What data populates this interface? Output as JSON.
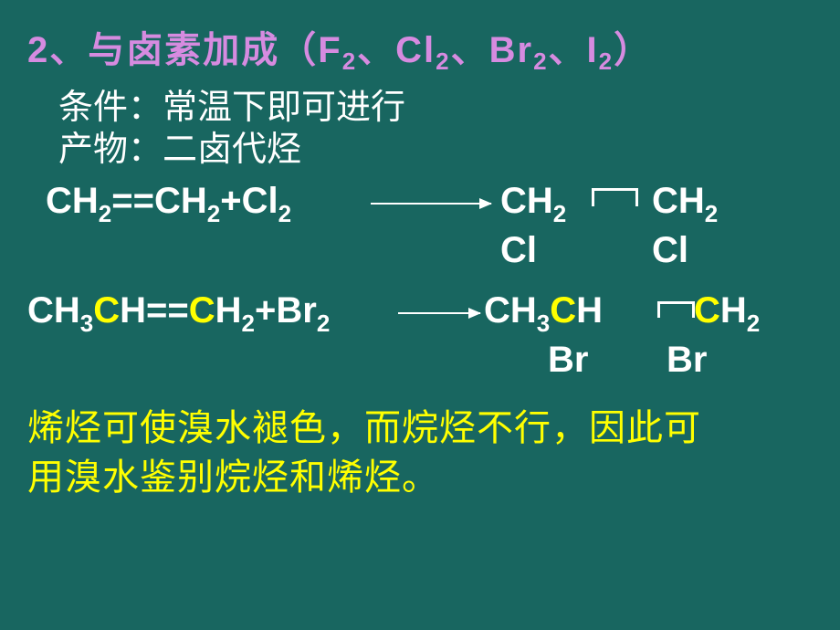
{
  "title_parts": {
    "t1": "2、与卤素加成（F",
    "s1": "2",
    "t2": "、Cl",
    "s2": "2",
    "t3": "、Br",
    "s3": "2",
    "t4": "、I",
    "s4": "2",
    "t5": "）"
  },
  "condition_line": "条件：常温下即可进行",
  "product_line": "产物：二卤代烃",
  "eq1": {
    "left": {
      "a": "CH",
      "as": "2",
      "b": "==CH",
      "bs": "2",
      "c": "+Cl",
      "cs": "2"
    },
    "p1": {
      "a": "CH",
      "as": "2"
    },
    "p2": {
      "a": "CH",
      "as": "2"
    },
    "cl1": "Cl",
    "cl2": "Cl"
  },
  "eq2": {
    "left": {
      "a": "CH",
      "as": "3",
      "b": "C",
      "c": "H==",
      "d": "C",
      "e": "H",
      "es": "2",
      "f": "+Br",
      "fs": "2"
    },
    "p1": {
      "a": "CH",
      "as": "3",
      "b": "C",
      "c": "H"
    },
    "p2": {
      "a": "C",
      "b": "H",
      "bs": "2"
    },
    "br1": "Br",
    "br2": "Br"
  },
  "note_line1": "烯烃可使溴水褪色，而烷烃不行，因此可",
  "note_line2": "用溴水鉴别烷烃和烯烃。",
  "colors": {
    "background": "#186660",
    "title": "#d68be0",
    "body_text": "#ffffff",
    "highlight": "#ffff00"
  }
}
